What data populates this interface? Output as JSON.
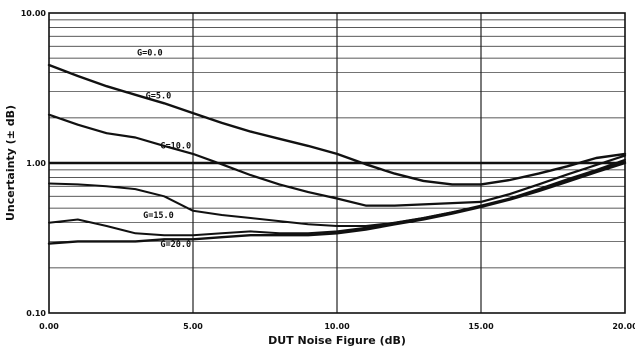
{
  "chart_data": {
    "type": "line",
    "title": "",
    "xlabel": "DUT Noise Figure (dB)",
    "ylabel": "Uncertainty (± dB)",
    "xlim": [
      0,
      20
    ],
    "ylim": [
      0.1,
      10
    ],
    "yscale": "log",
    "grid": true,
    "x_ticks": [
      0,
      5,
      10,
      15,
      20
    ],
    "x_tick_labels": [
      "0.00",
      "5.00",
      "10.00",
      "15.00",
      "20.00"
    ],
    "y_ticks": [
      0.1,
      1,
      10
    ],
    "y_tick_labels": [
      "0.10",
      "1.00",
      "10.00"
    ],
    "reference_line": {
      "y": 1.0
    },
    "series": [
      {
        "name": "G=0.0",
        "x": [
          0,
          1,
          2,
          3,
          4,
          5,
          6,
          7,
          8,
          9,
          10,
          11,
          12,
          13,
          14,
          15,
          16,
          17,
          18,
          19,
          20
        ],
        "y": [
          4.5,
          3.8,
          3.25,
          2.85,
          2.5,
          2.15,
          1.85,
          1.62,
          1.45,
          1.3,
          1.15,
          0.98,
          0.85,
          0.76,
          0.72,
          0.72,
          0.77,
          0.85,
          0.95,
          1.08,
          1.15
        ]
      },
      {
        "name": "G=5.0",
        "x": [
          0,
          1,
          2,
          3,
          4,
          5,
          6,
          7,
          8,
          9,
          10,
          11,
          12,
          13,
          14,
          15,
          16,
          17,
          18,
          19,
          20
        ],
        "y": [
          2.1,
          1.8,
          1.58,
          1.48,
          1.3,
          1.15,
          0.98,
          0.83,
          0.72,
          0.64,
          0.58,
          0.52,
          0.52,
          0.53,
          0.54,
          0.55,
          0.62,
          0.72,
          0.84,
          0.97,
          1.12
        ]
      },
      {
        "name": "G=10.0",
        "x": [
          0,
          1,
          2,
          3,
          4,
          5,
          6,
          7,
          8,
          9,
          10,
          11,
          12,
          13,
          14,
          15,
          16,
          17,
          18,
          19,
          20
        ],
        "y": [
          0.73,
          0.72,
          0.7,
          0.67,
          0.6,
          0.48,
          0.45,
          0.43,
          0.41,
          0.39,
          0.38,
          0.38,
          0.4,
          0.43,
          0.47,
          0.51,
          0.58,
          0.67,
          0.78,
          0.9,
          1.05
        ]
      },
      {
        "name": "G=15.0",
        "x": [
          0,
          1,
          2,
          3,
          4,
          5,
          6,
          7,
          8,
          9,
          10,
          11,
          12,
          13,
          14,
          15,
          16,
          17,
          18,
          19,
          20
        ],
        "y": [
          0.4,
          0.42,
          0.38,
          0.34,
          0.33,
          0.33,
          0.34,
          0.35,
          0.34,
          0.34,
          0.35,
          0.37,
          0.4,
          0.43,
          0.47,
          0.52,
          0.58,
          0.66,
          0.76,
          0.88,
          1.02
        ]
      },
      {
        "name": "G=20.0",
        "x": [
          0,
          1,
          2,
          3,
          4,
          5,
          6,
          7,
          8,
          9,
          10,
          11,
          12,
          13,
          14,
          15,
          16,
          17,
          18,
          19,
          20
        ],
        "y": [
          0.29,
          0.3,
          0.3,
          0.3,
          0.31,
          0.31,
          0.32,
          0.33,
          0.33,
          0.33,
          0.34,
          0.36,
          0.39,
          0.42,
          0.46,
          0.51,
          0.57,
          0.65,
          0.75,
          0.87,
          1.0
        ]
      }
    ]
  }
}
